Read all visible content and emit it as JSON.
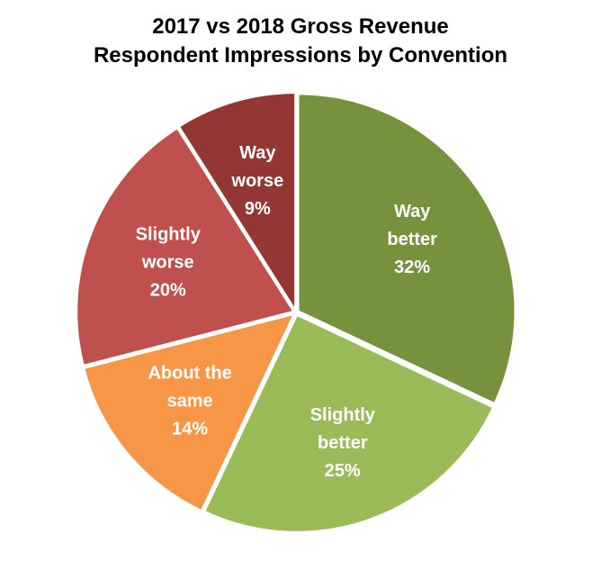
{
  "chart_data": {
    "type": "pie",
    "title": "2017 vs 2018 Gross Revenue",
    "subtitle": "Respondent Impressions by Convention",
    "start_angle_deg": 0,
    "direction": "clockwise",
    "slices": [
      {
        "label_lines": [
          "Way",
          "better"
        ],
        "value": 32,
        "value_label": "32%",
        "color": "#76923c"
      },
      {
        "label_lines": [
          "Slightly",
          "better"
        ],
        "value": 25,
        "value_label": "25%",
        "color": "#9bbb59"
      },
      {
        "label_lines": [
          "About the",
          "same"
        ],
        "value": 14,
        "value_label": "14%",
        "color": "#f79646"
      },
      {
        "label_lines": [
          "Slightly",
          "worse"
        ],
        "value": 20,
        "value_label": "20%",
        "color": "#c0504d"
      },
      {
        "label_lines": [
          "Way",
          "worse"
        ],
        "value": 9,
        "value_label": "9%",
        "color": "#943634"
      }
    ]
  }
}
